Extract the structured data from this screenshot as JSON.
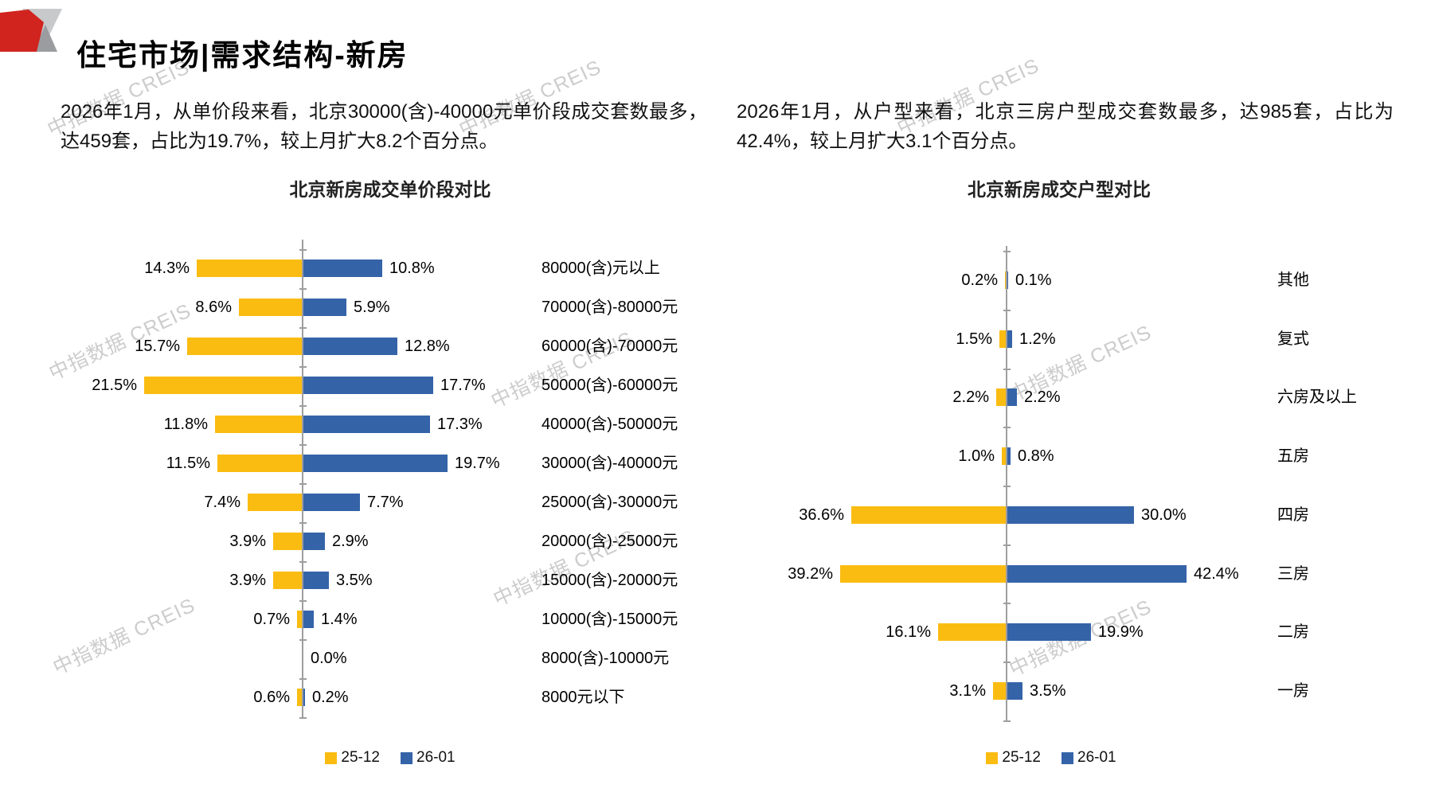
{
  "header": {
    "title": "住宅市场|需求结构-新房"
  },
  "watermark": {
    "text": "中指数据 CREIS"
  },
  "left_section": {
    "paragraph": "2026年1月，从单价段来看，北京30000(含)-40000元单价段成交套数最多，达459套，占比为19.7%，较上月扩大8.2个百分点。",
    "chart_title": "北京新房成交单价段对比"
  },
  "right_section": {
    "paragraph": "2026年1月，从户型来看，北京三房户型成交套数最多，达985套，占比为42.4%，较上月扩大3.1个百分点。",
    "chart_title": "北京新房成交户型对比"
  },
  "legend": {
    "series": [
      {
        "label": "25-12",
        "color": "#FBBC12"
      },
      {
        "label": "26-01",
        "color": "#3563A8"
      }
    ]
  },
  "chart_data": [
    {
      "type": "bar",
      "subtype": "tornado",
      "title": "北京新房成交单价段对比",
      "unit": "percent",
      "legend_position": "bottom",
      "categories": [
        "80000(含)元以上",
        "70000(含)-80000元",
        "60000(含)-70000元",
        "50000(含)-60000元",
        "40000(含)-50000元",
        "30000(含)-40000元",
        "25000(含)-30000元",
        "20000(含)-25000元",
        "15000(含)-20000元",
        "10000(含)-15000元",
        "8000(含)-10000元",
        "8000元以下"
      ],
      "series": [
        {
          "name": "25-12",
          "color": "#FBBC12",
          "side": "left",
          "values": [
            14.3,
            8.6,
            15.7,
            21.5,
            11.8,
            11.5,
            7.4,
            3.9,
            3.9,
            0.7,
            null,
            0.6
          ],
          "labels": [
            "14.3%",
            "8.6%",
            "15.7%",
            "21.5%",
            "11.8%",
            "11.5%",
            "7.4%",
            "3.9%",
            "3.9%",
            "0.7%",
            "",
            "0.6%"
          ]
        },
        {
          "name": "26-01",
          "color": "#3563A8",
          "side": "right",
          "values": [
            10.8,
            5.9,
            12.8,
            17.7,
            17.3,
            19.7,
            7.7,
            2.9,
            3.5,
            1.4,
            0.0,
            0.2
          ],
          "labels": [
            "10.8%",
            "5.9%",
            "12.8%",
            "17.7%",
            "17.3%",
            "19.7%",
            "7.7%",
            "2.9%",
            "3.5%",
            "1.4%",
            "0.0%",
            "0.2%"
          ]
        }
      ]
    },
    {
      "type": "bar",
      "subtype": "tornado",
      "title": "北京新房成交户型对比",
      "unit": "percent",
      "legend_position": "bottom",
      "categories": [
        "其他",
        "复式",
        "六房及以上",
        "五房",
        "四房",
        "三房",
        "二房",
        "一房"
      ],
      "series": [
        {
          "name": "25-12",
          "color": "#FBBC12",
          "side": "left",
          "values": [
            0.2,
            1.5,
            2.2,
            1.0,
            36.6,
            39.2,
            16.1,
            3.1
          ],
          "labels": [
            "0.2%",
            "1.5%",
            "2.2%",
            "1.0%",
            "36.6%",
            "39.2%",
            "16.1%",
            "3.1%"
          ]
        },
        {
          "name": "26-01",
          "color": "#3563A8",
          "side": "right",
          "values": [
            0.1,
            1.2,
            2.2,
            0.8,
            30.0,
            42.4,
            19.9,
            3.5
          ],
          "labels": [
            "0.1%",
            "1.2%",
            "2.2%",
            "0.8%",
            "30.0%",
            "42.4%",
            "19.9%",
            "3.5%"
          ]
        }
      ]
    }
  ]
}
